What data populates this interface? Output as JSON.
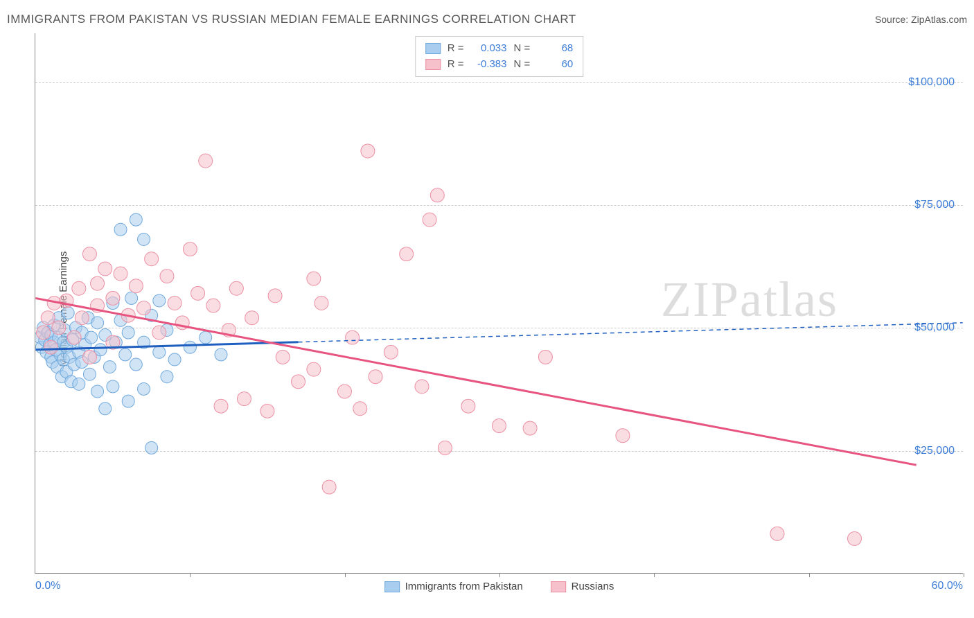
{
  "title": "IMMIGRANTS FROM PAKISTAN VS RUSSIAN MEDIAN FEMALE EARNINGS CORRELATION CHART",
  "source_label": "Source: ",
  "source_value": "ZipAtlas.com",
  "watermark_a": "ZIP",
  "watermark_b": "atlas",
  "chart": {
    "type": "scatter",
    "ylabel": "Median Female Earnings",
    "xlim": [
      0,
      60
    ],
    "ylim": [
      0,
      110000
    ],
    "x_axis_start_label": "0.0%",
    "x_axis_end_label": "60.0%",
    "y_gridlines": [
      25000,
      50000,
      75000,
      100000
    ],
    "y_tick_labels": [
      "$25,000",
      "$50,000",
      "$75,000",
      "$100,000"
    ],
    "x_ticks": [
      0,
      10,
      20,
      30,
      40,
      50,
      60
    ],
    "background_color": "#ffffff",
    "grid_color": "#cccccc",
    "axis_color": "#888888",
    "tick_label_color": "#3b7dd8",
    "series": [
      {
        "name": "Immigrants from Pakistan",
        "color_fill": "#a9cdee",
        "color_stroke": "#6fa8dc",
        "fill_opacity": 0.55,
        "marker_radius": 9,
        "R": "0.033",
        "N": "68",
        "trend": {
          "x1": 0,
          "y1": 45500,
          "x2": 60,
          "y2": 51000,
          "solid_until_x": 17,
          "color": "#1f5fbf",
          "width": 3
        },
        "points": [
          [
            0.3,
            48000
          ],
          [
            0.4,
            46000
          ],
          [
            0.5,
            50000
          ],
          [
            0.6,
            47500
          ],
          [
            0.7,
            45000
          ],
          [
            0.8,
            49000
          ],
          [
            0.9,
            46500
          ],
          [
            1.0,
            44000
          ],
          [
            1.0,
            48500
          ],
          [
            1.1,
            43000
          ],
          [
            1.2,
            47000
          ],
          [
            1.2,
            50500
          ],
          [
            1.3,
            45500
          ],
          [
            1.4,
            42000
          ],
          [
            1.5,
            48000
          ],
          [
            1.5,
            52000
          ],
          [
            1.6,
            44500
          ],
          [
            1.7,
            40000
          ],
          [
            1.8,
            47000
          ],
          [
            1.8,
            43500
          ],
          [
            1.9,
            49500
          ],
          [
            2.0,
            46000
          ],
          [
            2.0,
            41000
          ],
          [
            2.1,
            53000
          ],
          [
            2.2,
            44000
          ],
          [
            2.3,
            39000
          ],
          [
            2.4,
            47500
          ],
          [
            2.5,
            42500
          ],
          [
            2.6,
            50000
          ],
          [
            2.8,
            45000
          ],
          [
            2.8,
            38500
          ],
          [
            3.0,
            49000
          ],
          [
            3.0,
            43000
          ],
          [
            3.2,
            46500
          ],
          [
            3.4,
            52000
          ],
          [
            3.5,
            40500
          ],
          [
            3.6,
            48000
          ],
          [
            3.8,
            44000
          ],
          [
            4.0,
            37000
          ],
          [
            4.0,
            51000
          ],
          [
            4.2,
            45500
          ],
          [
            4.5,
            33500
          ],
          [
            4.5,
            48500
          ],
          [
            4.8,
            42000
          ],
          [
            5.0,
            55000
          ],
          [
            5.0,
            38000
          ],
          [
            5.2,
            47000
          ],
          [
            5.5,
            51500
          ],
          [
            5.5,
            70000
          ],
          [
            5.8,
            44500
          ],
          [
            6.0,
            35000
          ],
          [
            6.0,
            49000
          ],
          [
            6.2,
            56000
          ],
          [
            6.5,
            72000
          ],
          [
            6.5,
            42500
          ],
          [
            7.0,
            68000
          ],
          [
            7.0,
            47000
          ],
          [
            7.0,
            37500
          ],
          [
            7.5,
            52500
          ],
          [
            7.5,
            25500
          ],
          [
            8.0,
            45000
          ],
          [
            8.0,
            55500
          ],
          [
            8.5,
            40000
          ],
          [
            8.5,
            49500
          ],
          [
            9.0,
            43500
          ],
          [
            10.0,
            46000
          ],
          [
            11.0,
            48000
          ],
          [
            12.0,
            44500
          ]
        ]
      },
      {
        "name": "Russians",
        "color_fill": "#f6c1cb",
        "color_stroke": "#ec8fa3",
        "fill_opacity": 0.55,
        "marker_radius": 10,
        "R": "-0.383",
        "N": "60",
        "trend": {
          "x1": 0,
          "y1": 56000,
          "x2": 57,
          "y2": 22000,
          "solid_until_x": 57,
          "color": "#e75480",
          "width": 3
        },
        "points": [
          [
            0.5,
            49000
          ],
          [
            0.8,
            52000
          ],
          [
            1.0,
            46000
          ],
          [
            1.2,
            55000
          ],
          [
            1.5,
            50000
          ],
          [
            2.0,
            55500
          ],
          [
            2.5,
            48000
          ],
          [
            2.8,
            58000
          ],
          [
            3.0,
            52000
          ],
          [
            3.5,
            65000
          ],
          [
            3.5,
            44000
          ],
          [
            4.0,
            54500
          ],
          [
            4.0,
            59000
          ],
          [
            4.5,
            62000
          ],
          [
            5.0,
            47000
          ],
          [
            5.0,
            56000
          ],
          [
            5.5,
            61000
          ],
          [
            6.0,
            52500
          ],
          [
            6.5,
            58500
          ],
          [
            7.0,
            54000
          ],
          [
            7.5,
            64000
          ],
          [
            8.0,
            49000
          ],
          [
            8.5,
            60500
          ],
          [
            9.0,
            55000
          ],
          [
            9.5,
            51000
          ],
          [
            10.0,
            66000
          ],
          [
            10.5,
            57000
          ],
          [
            11.0,
            84000
          ],
          [
            11.5,
            54500
          ],
          [
            12.0,
            34000
          ],
          [
            12.5,
            49500
          ],
          [
            13.0,
            58000
          ],
          [
            13.5,
            35500
          ],
          [
            14.0,
            52000
          ],
          [
            15.0,
            33000
          ],
          [
            15.5,
            56500
          ],
          [
            16.0,
            44000
          ],
          [
            17.0,
            39000
          ],
          [
            18.0,
            41500
          ],
          [
            18.5,
            55000
          ],
          [
            19.0,
            17500
          ],
          [
            20.0,
            37000
          ],
          [
            20.5,
            48000
          ],
          [
            21.0,
            33500
          ],
          [
            21.5,
            86000
          ],
          [
            22.0,
            40000
          ],
          [
            23.0,
            45000
          ],
          [
            24.0,
            65000
          ],
          [
            25.0,
            38000
          ],
          [
            25.5,
            72000
          ],
          [
            26.0,
            77000
          ],
          [
            26.5,
            25500
          ],
          [
            28.0,
            34000
          ],
          [
            30.0,
            30000
          ],
          [
            32.0,
            29500
          ],
          [
            33.0,
            44000
          ],
          [
            38.0,
            28000
          ],
          [
            48.0,
            8000
          ],
          [
            53.0,
            7000
          ],
          [
            18.0,
            60000
          ]
        ]
      }
    ]
  },
  "legend_top": {
    "r_label": "R =",
    "n_label": "N ="
  },
  "legend_bottom": {
    "items": [
      "Immigrants from Pakistan",
      "Russians"
    ]
  }
}
